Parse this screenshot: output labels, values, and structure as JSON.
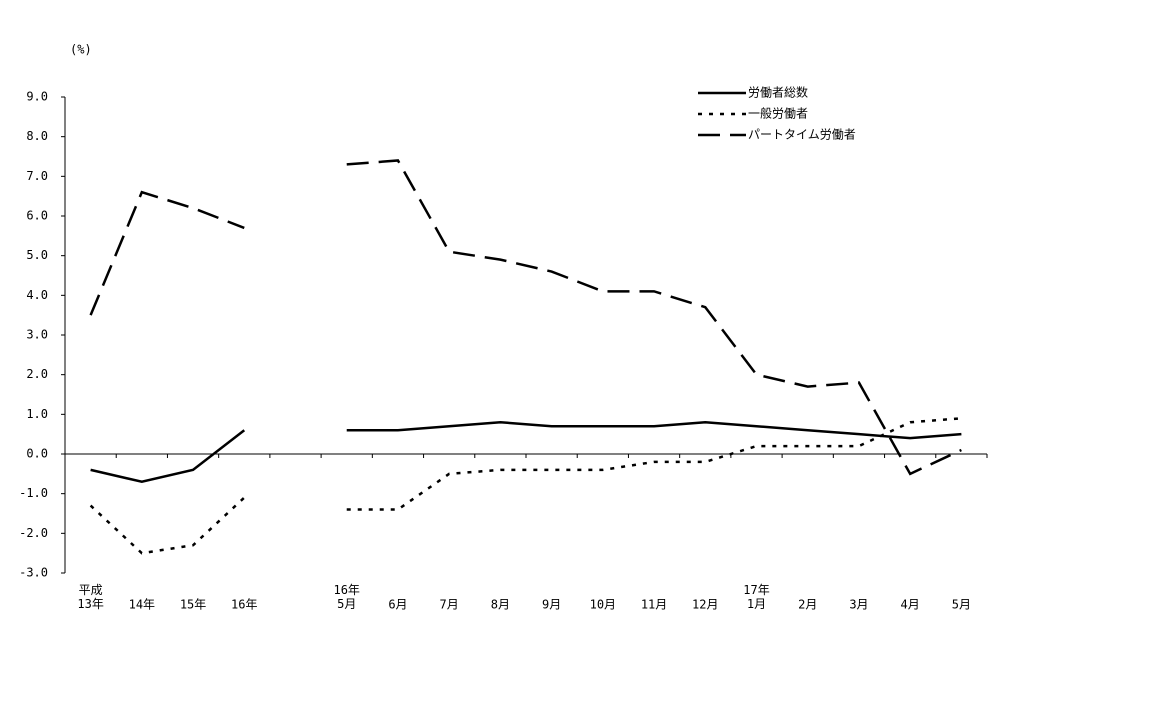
{
  "chart_data": {
    "type": "line",
    "unit": "(%)",
    "categories": [
      "平成\n13年",
      "14年",
      "15年",
      "16年",
      null,
      "16年\n5月",
      "6月",
      "7月",
      "8月",
      "9月",
      "10月",
      "11月",
      "12月",
      "17年\n1月",
      "2月",
      "3月",
      "4月",
      "5月"
    ],
    "series": [
      {
        "name": "労働者総数",
        "color": "#000000",
        "values": [
          -0.4,
          -0.7,
          -0.4,
          0.6,
          null,
          0.6,
          0.6,
          0.7,
          0.8,
          0.7,
          0.7,
          0.7,
          0.8,
          0.7,
          0.6,
          0.5,
          0.4,
          0.5
        ]
      },
      {
        "name": "一般労働者",
        "color": "#000000",
        "values": [
          -1.3,
          -2.5,
          -2.3,
          -1.1,
          null,
          -1.4,
          -1.4,
          -0.5,
          -0.4,
          -0.4,
          -0.4,
          -0.2,
          -0.2,
          0.2,
          0.2,
          0.2,
          0.8,
          0.9
        ]
      },
      {
        "name": "パートタイム労働者",
        "color": "#000000",
        "values": [
          3.5,
          6.6,
          6.2,
          5.7,
          null,
          7.3,
          7.4,
          5.1,
          4.9,
          4.6,
          4.1,
          4.1,
          3.7,
          2.0,
          1.7,
          1.8,
          -0.5,
          0.1
        ]
      }
    ],
    "ylim": [
      -3,
      9
    ],
    "yticks": [
      {
        "value": -3,
        "label": "-3.0"
      },
      {
        "value": -2,
        "label": "-2.0"
      },
      {
        "value": -1,
        "label": "-1.0"
      },
      {
        "value": 0,
        "label": "0.0"
      },
      {
        "value": 1,
        "label": "1.0"
      },
      {
        "value": 2,
        "label": "2.0"
      },
      {
        "value": 3,
        "label": "3.0"
      },
      {
        "value": 4,
        "label": "4.0"
      },
      {
        "value": 5,
        "label": "5.0"
      },
      {
        "value": 6,
        "label": "6.0"
      },
      {
        "value": 7,
        "label": "7.0"
      },
      {
        "value": 8,
        "label": "8.0"
      },
      {
        "value": 9,
        "label": "9.0"
      }
    ],
    "legend": "top-right"
  }
}
